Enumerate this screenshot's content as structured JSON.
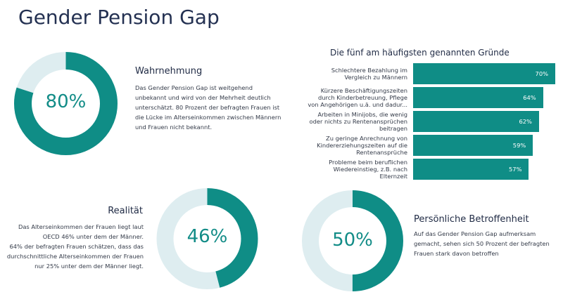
{
  "title": "Gender Pension Gap",
  "colors": {
    "accent": "#0f8d86",
    "track": "#deedf0",
    "text": "#243152"
  },
  "sections": {
    "wahrnehmung": {
      "heading": "Wahrnehmung",
      "text_lines": [
        "Das Gender Pension Gap ist weitgehend",
        "unbekannt und wird von der Mehrheit deutlich",
        "unterschätzt. 80 Prozent der befragten Frauen ist",
        "die Lücke im Alterseinkommen zwischen Männern",
        "und Frauen nicht bekannt."
      ]
    },
    "realitaet": {
      "heading": "Realität",
      "text_lines": [
        "Das Alterseinkommen der Frauen liegt laut",
        "OECD 46% unter dem der Männer.",
        "64% der befragten Frauen schätzen, dass das",
        "durchschnittliche Alterseinkommen der Frauen",
        "nur 25% unter dem der Männer liegt."
      ]
    },
    "betroffenheit": {
      "heading": "Persönliche Betroffenheit",
      "text_lines": [
        "Auf das Gender Pension Gap aufmerksam",
        "gemacht, sehen sich 50 Prozent der befragten",
        "Frauen stark davon betroffen"
      ]
    }
  },
  "chart_data": [
    {
      "type": "pie",
      "value": 80,
      "label": "80%",
      "max": 100
    },
    {
      "type": "pie",
      "value": 46,
      "label": "46%",
      "max": 100
    },
    {
      "type": "pie",
      "value": 50,
      "label": "50%",
      "max": 100
    },
    {
      "type": "bar",
      "orientation": "horizontal",
      "title": "Die fünf am häufigsten genannten Gründe",
      "categories": [
        [
          "Schlechtere Bezahlung im",
          "Vergleich zu Männern"
        ],
        [
          "Kürzere Beschäftigungszeiten",
          "durch Kinderbetreuung, Pflege",
          "von Angehörigen u.ä. und dadur..."
        ],
        [
          "Arbeiten in Minijobs, die wenig",
          "oder nichts zu Rentenansprüchen",
          "beitragen"
        ],
        [
          "Zu geringe Anrechnung von",
          "Kindererziehungszeiten auf die",
          "Rentenansprüche"
        ],
        [
          "Probleme beim beruflichen",
          "Wiedereinstieg, z.B. nach",
          "Elternzeit"
        ]
      ],
      "values": [
        70,
        64,
        62,
        59,
        57
      ],
      "value_labels": [
        "70%",
        "64%",
        "62%",
        "59%",
        "57%"
      ]
    }
  ]
}
